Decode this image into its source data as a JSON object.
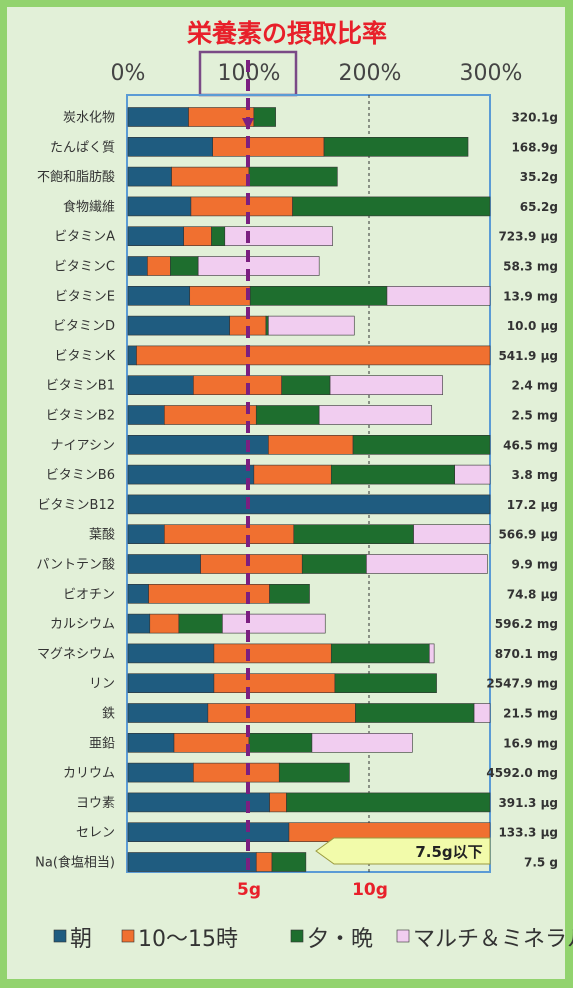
{
  "chart_data": {
    "type": "bar",
    "stacked": true,
    "orientation": "horizontal",
    "title": "栄養素の摂取比率",
    "x_ticks": [
      "0%",
      "100%",
      "200%",
      "300%"
    ],
    "xlim": [
      0,
      300
    ],
    "reference_labels": [
      {
        "value": 100,
        "label": "5g"
      },
      {
        "value": 200,
        "label": "10g"
      }
    ],
    "legend_position": "bottom",
    "categories": [
      "炭水化物",
      "たんぱく質",
      "不飽和脂肪酸",
      "食物繊維",
      "ビタミンA",
      "ビタミンC",
      "ビタミンE",
      "ビタミンD",
      "ビタミンK",
      "ビタミンB1",
      "ビタミンB2",
      "ナイアシン",
      "ビタミンB6",
      "ビタミンB12",
      "葉酸",
      "パントテン酸",
      "ビオチン",
      "カルシウム",
      "マグネシウム",
      "リン",
      "鉄",
      "亜鉛",
      "カリウム",
      "ヨウ素",
      "セレン",
      "Na(食塩相当)"
    ],
    "amounts": [
      "320.1g",
      "168.9g",
      "35.2g",
      "65.2g",
      "723.9 μg",
      "58.3 mg",
      "13.9 mg",
      "10.0 μg",
      "541.9 μg",
      "2.4 mg",
      "2.5 mg",
      "46.5 mg",
      "3.8 mg",
      "17.2 μg",
      "566.9 μg",
      "9.9 mg",
      "74.8 μg",
      "596.2 mg",
      "870.1 mg",
      "2547.9 mg",
      "21.5 mg",
      "16.9 mg",
      "4592.0 mg",
      "391.3 μg",
      "133.3 μg",
      "7.5 g"
    ],
    "series": [
      {
        "name": "朝",
        "color": "#1f5c80",
        "values": [
          50,
          70,
          36,
          52,
          46,
          16,
          51,
          84,
          7,
          54,
          30,
          116,
          104,
          300,
          30,
          60,
          17,
          18,
          71,
          71,
          66,
          38,
          54,
          117,
          133,
          106
        ]
      },
      {
        "name": "10～15時",
        "color": "#f07030",
        "values": [
          54,
          92,
          64,
          84,
          23,
          19,
          50,
          30,
          293,
          73,
          76,
          70,
          64,
          0,
          107,
          84,
          100,
          24,
          97,
          100,
          122,
          62,
          71,
          14,
          167,
          13
        ]
      },
      {
        "name": "夕・晩",
        "color": "#1e6e2e",
        "values": [
          18,
          119,
          73,
          164,
          11,
          23,
          113,
          2,
          0,
          40,
          52,
          114,
          102,
          0,
          99,
          53,
          33,
          36,
          81,
          84,
          98,
          52,
          58,
          169,
          0,
          28
        ]
      },
      {
        "name": "マルチ＆ミネラル",
        "color": "#f1cdf0",
        "values": [
          0,
          0,
          0,
          0,
          89,
          100,
          87,
          71,
          0,
          93,
          93,
          0,
          30,
          0,
          64,
          100,
          0,
          85,
          4,
          0,
          14,
          83,
          0,
          0,
          0,
          0
        ]
      }
    ]
  },
  "note_label": "7.5g以下"
}
